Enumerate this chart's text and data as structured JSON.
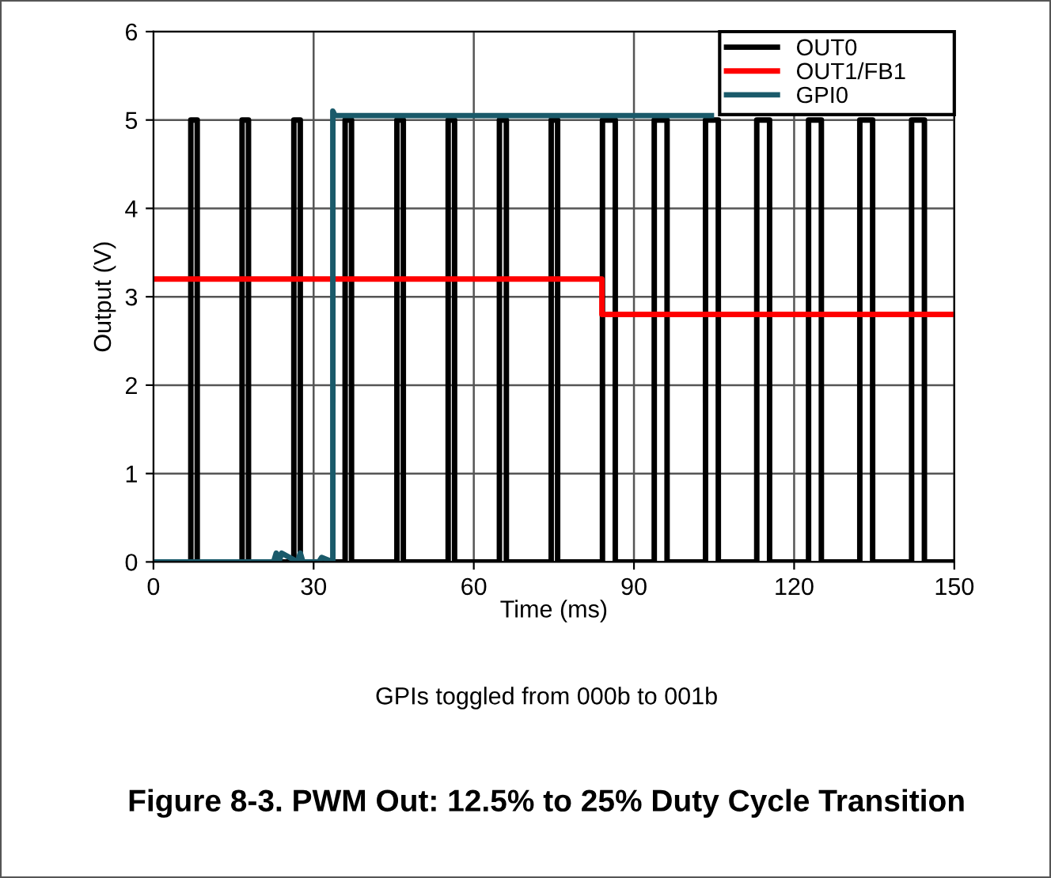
{
  "chart_data": {
    "type": "line",
    "title": "Figure 8-3. PWM Out: 12.5% to 25% Duty Cycle Transition",
    "xlabel": "Time (ms)",
    "ylabel": "Output (V)",
    "xlim": [
      0,
      150
    ],
    "ylim": [
      0,
      6
    ],
    "xticks": [
      0,
      30,
      60,
      90,
      120,
      150
    ],
    "yticks": [
      0,
      1,
      2,
      3,
      4,
      5,
      6
    ],
    "grid": true,
    "legend": "top right",
    "annotations": [
      "GPIs toggled from 000b to 001b"
    ],
    "series": [
      {
        "name": "OUT0",
        "color": "#000000",
        "x": [
          0,
          7.0,
          7.0,
          8.2,
          8.2,
          16.6,
          16.6,
          17.8,
          17.8,
          26.3,
          26.3,
          27.5,
          27.5,
          35.9,
          35.9,
          37.1,
          37.1,
          45.6,
          45.6,
          46.8,
          46.8,
          55.2,
          55.2,
          56.4,
          56.4,
          64.8,
          64.8,
          66.1,
          66.1,
          74.5,
          74.5,
          75.7,
          75.7,
          84.1,
          84.1,
          86.5,
          86.5,
          93.8,
          93.8,
          96.2,
          96.2,
          103.4,
          103.4,
          105.8,
          105.8,
          113.0,
          113.0,
          115.4,
          115.4,
          122.7,
          122.7,
          125.1,
          125.1,
          132.3,
          132.3,
          134.7,
          134.7,
          142.0,
          142.0,
          144.4,
          144.4,
          150
        ],
        "values": [
          0,
          0,
          5,
          5,
          0,
          0,
          5,
          5,
          0,
          0,
          5,
          5,
          0,
          0,
          5,
          5,
          0,
          0,
          5,
          5,
          0,
          0,
          5,
          5,
          0,
          0,
          5,
          5,
          0,
          0,
          5,
          5,
          0,
          0,
          5,
          5,
          0,
          0,
          5,
          5,
          0,
          0,
          5,
          5,
          0,
          0,
          5,
          5,
          0,
          0,
          5,
          5,
          0,
          0,
          5,
          5,
          0,
          0,
          5,
          5,
          0,
          0
        ]
      },
      {
        "name": "OUT1/FB1",
        "color": "#ff0000",
        "x": [
          0,
          84.0,
          84.0,
          150
        ],
        "values": [
          3.2,
          3.2,
          2.8,
          2.8
        ]
      },
      {
        "name": "GPI0",
        "color": "#1a5a6a",
        "x": [
          0,
          22.5,
          23,
          23.5,
          24,
          27,
          27.5,
          28,
          31,
          31.5,
          33.6,
          33.6,
          34,
          104.5
        ],
        "values": [
          0,
          0,
          0.1,
          0,
          0.1,
          0,
          0.1,
          0,
          0,
          0.05,
          0,
          5.1,
          5.05,
          5.05
        ]
      }
    ]
  }
}
